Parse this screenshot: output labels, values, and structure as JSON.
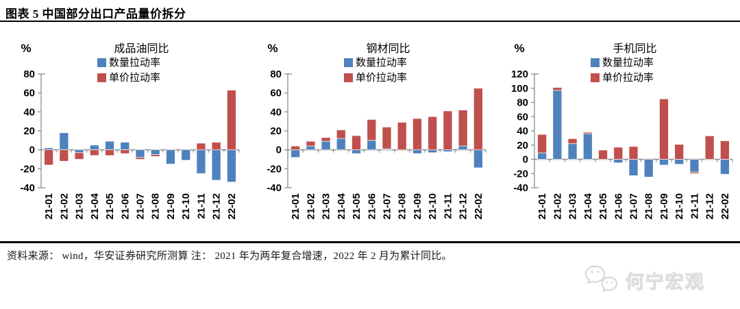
{
  "header": {
    "title": "图表 5  中国部分出口产品量价拆分"
  },
  "footer": {
    "note": "资料来源： wind，华安证券研究所测算  注： 2021 年为两年复合增速，2022 年 2 月为累计同比。",
    "watermark": "何宁宏观"
  },
  "colors": {
    "quantity": "#4F81BD",
    "price": "#C0504D",
    "axis": "#8C8C8C",
    "text": "#000000",
    "watermark": "#D9D9D9"
  },
  "chart_data": [
    {
      "key": "refined-oil",
      "type": "bar",
      "stacked": true,
      "title": "成品油同比",
      "unit_label": "%",
      "legend_position": "top",
      "grid": false,
      "ylim": [
        -40,
        80
      ],
      "ystep": 20,
      "categories": [
        "21-01",
        "21-02",
        "21-03",
        "21-04",
        "21-05",
        "21-06",
        "21-07",
        "21-08",
        "21-09",
        "21-10",
        "21-11",
        "21-12",
        "22-02"
      ],
      "series": [
        {
          "name": "数量拉动率",
          "color_key": "quantity",
          "values": [
            2,
            18,
            -3,
            5,
            9,
            8,
            -8,
            -5,
            -15,
            -11,
            -25,
            -32,
            -34
          ]
        },
        {
          "name": "单价拉动率",
          "color_key": "price",
          "values": [
            -16,
            -12,
            -7,
            -6,
            -6,
            -4,
            -2,
            -2,
            0,
            0,
            7,
            8,
            63
          ]
        }
      ]
    },
    {
      "key": "steel",
      "type": "bar",
      "stacked": true,
      "title": "钢材同比",
      "unit_label": "%",
      "legend_position": "top",
      "grid": false,
      "ylim": [
        -40,
        80
      ],
      "ystep": 20,
      "categories": [
        "21-01",
        "21-02",
        "21-03",
        "21-04",
        "21-05",
        "21-06",
        "21-07",
        "21-08",
        "21-09",
        "21-10",
        "21-11",
        "21-12",
        "22-02"
      ],
      "series": [
        {
          "name": "数量拉动率",
          "color_key": "quantity",
          "values": [
            -8,
            4,
            9,
            12,
            -4,
            10,
            1,
            0,
            -4,
            -3,
            -2,
            4,
            -19
          ]
        },
        {
          "name": "单价拉动率",
          "color_key": "price",
          "values": [
            4,
            5,
            4,
            9,
            15,
            22,
            23,
            29,
            33,
            35,
            41,
            38,
            65
          ]
        }
      ]
    },
    {
      "key": "mobile-phone",
      "type": "bar",
      "stacked": true,
      "title": "手机同比",
      "unit_label": "%",
      "legend_position": "top",
      "grid": false,
      "ylim": [
        -40,
        120
      ],
      "ystep": 20,
      "categories": [
        "21-01",
        "21-02",
        "21-03",
        "21-04",
        "21-05",
        "21-06",
        "21-07",
        "21-08",
        "21-09",
        "21-10",
        "21-11",
        "21-12",
        "22-02"
      ],
      "series": [
        {
          "name": "数量拉动率",
          "color_key": "quantity",
          "values": [
            9,
            97,
            22,
            36,
            0,
            -5,
            -23,
            -25,
            -8,
            -7,
            -18,
            0,
            -21
          ]
        },
        {
          "name": "单价拉动率",
          "color_key": "price",
          "values": [
            26,
            4,
            7,
            2,
            13,
            17,
            18,
            0,
            85,
            21,
            -2,
            33,
            26
          ]
        }
      ]
    }
  ]
}
